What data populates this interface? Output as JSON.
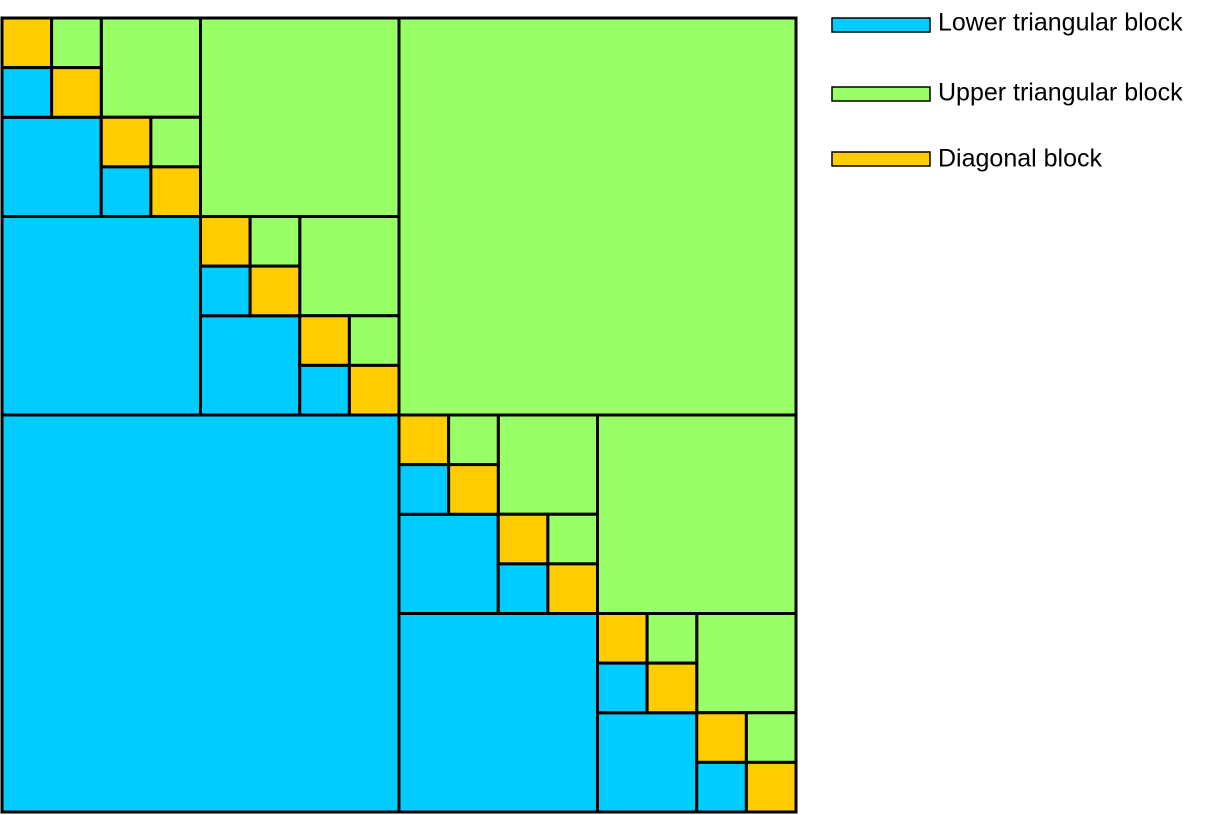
{
  "legend": {
    "lower": "Lower triangular block",
    "upper": "Upper triangular block",
    "diagonal": "Diagonal block"
  }
}
